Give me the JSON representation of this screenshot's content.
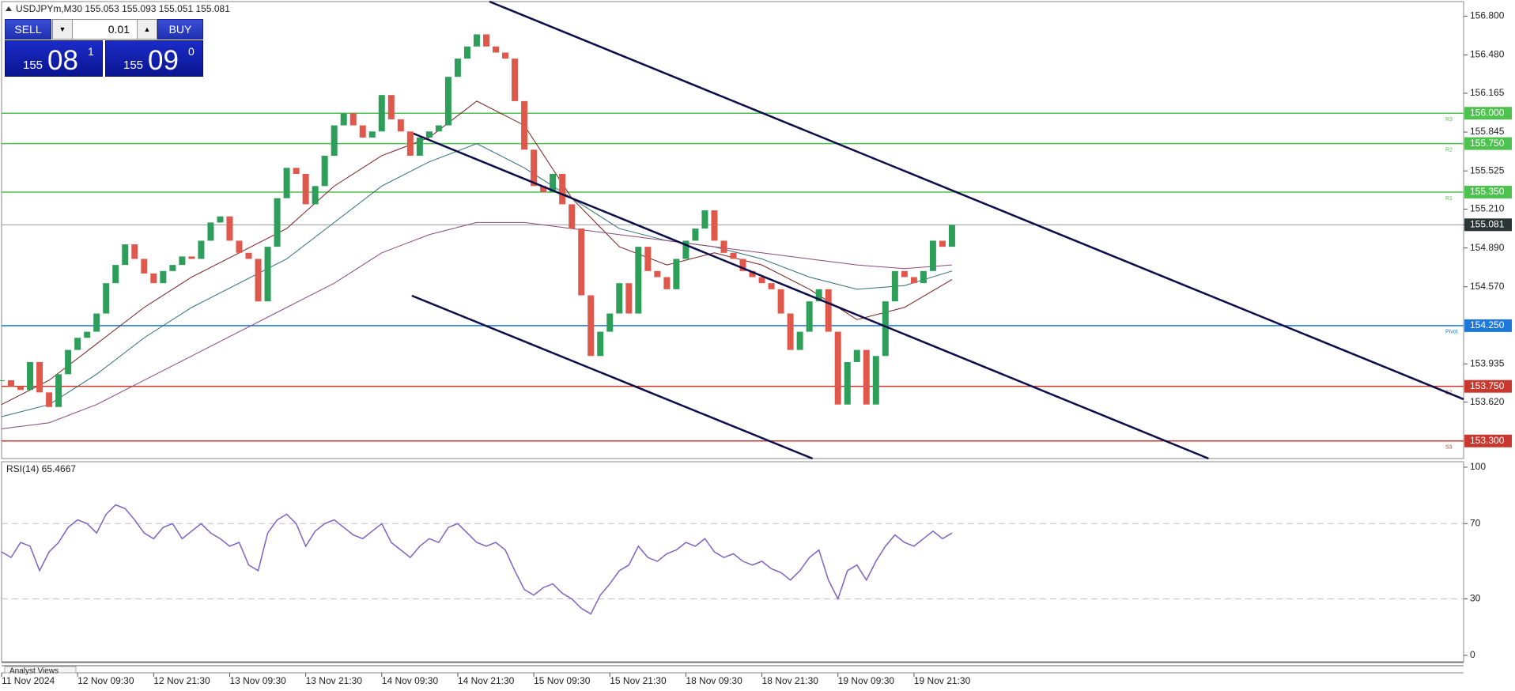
{
  "header": {
    "symbol_info": "USDJPYm,M30  155.053 155.093 155.051 155.081"
  },
  "trade_panel": {
    "sell": "SELL",
    "buy": "BUY",
    "lot": "0.01",
    "sell_price": {
      "prefix": "155",
      "big": "08",
      "sup": "1"
    },
    "buy_price": {
      "prefix": "155",
      "big": "09",
      "sup": "0"
    }
  },
  "chart_data": [
    {
      "type": "candlestick",
      "up_color": "#2e9e5b",
      "down_color": "#e0584c",
      "x": [
        0,
        3,
        6,
        9,
        12,
        15,
        18,
        21,
        24,
        27,
        30,
        33,
        36,
        39,
        42,
        45,
        48,
        51,
        54,
        57,
        60,
        63,
        66,
        69,
        72,
        75,
        78,
        81,
        84,
        87,
        90,
        93,
        96,
        99,
        102,
        105,
        108,
        111,
        114,
        117,
        120,
        123,
        126,
        129,
        132,
        135,
        138,
        141,
        144,
        147,
        150,
        153,
        156,
        159,
        162,
        165,
        168,
        171,
        174,
        177,
        180,
        183,
        186,
        189,
        192,
        195,
        198,
        201,
        204,
        207,
        210,
        213,
        216,
        219,
        222,
        225,
        228,
        231,
        234,
        237,
        240,
        243,
        246,
        249,
        252,
        255,
        258,
        261,
        264,
        267,
        270,
        273,
        276,
        279,
        282,
        285,
        288,
        291,
        294,
        297,
        300
      ],
      "values": [
        153.8,
        153.75,
        153.72,
        153.95,
        153.7,
        153.58,
        153.85,
        154.05,
        154.15,
        154.2,
        154.35,
        154.6,
        154.75,
        154.92,
        154.8,
        154.68,
        154.6,
        154.7,
        154.75,
        154.82,
        154.8,
        154.95,
        155.1,
        155.15,
        154.95,
        154.85,
        154.8,
        154.45,
        154.9,
        155.3,
        155.55,
        155.5,
        155.25,
        155.4,
        155.65,
        155.9,
        156.0,
        155.9,
        155.8,
        155.85,
        156.15,
        155.95,
        155.85,
        155.65,
        155.8,
        155.85,
        155.9,
        156.3,
        156.45,
        156.55,
        156.65,
        156.55,
        156.5,
        156.45,
        156.1,
        155.7,
        155.4,
        155.35,
        155.5,
        155.25,
        155.05,
        154.5,
        154.0,
        154.2,
        154.35,
        154.6,
        154.35,
        154.9,
        154.7,
        154.65,
        154.55,
        154.8,
        154.95,
        155.05,
        155.2,
        154.95,
        154.85,
        154.8,
        154.7,
        154.65,
        154.6,
        154.55,
        154.35,
        154.05,
        154.2,
        154.45,
        154.55,
        154.2,
        153.6,
        153.95,
        154.05,
        153.6,
        154.0,
        154.45,
        154.7,
        154.65,
        154.6,
        154.7,
        154.95,
        154.9,
        155.08
      ],
      "xlim": [
        0,
        461.5
      ],
      "ylim": [
        153.155,
        156.92
      ],
      "xticks": [
        {
          "value": 0,
          "label": "11 Nov 2024"
        },
        {
          "value": 24,
          "label": "12 Nov 09:30"
        },
        {
          "value": 48,
          "label": "12 Nov 21:30"
        },
        {
          "value": 72,
          "label": "13 Nov 09:30"
        },
        {
          "value": 96,
          "label": "13 Nov 21:30"
        },
        {
          "value": 120,
          "label": "14 Nov 09:30"
        },
        {
          "value": 144,
          "label": "14 Nov 21:30"
        },
        {
          "value": 168,
          "label": "15 Nov 09:30"
        },
        {
          "value": 192,
          "label": "15 Nov 21:30"
        },
        {
          "value": 216,
          "label": "18 Nov 09:30"
        },
        {
          "value": 240,
          "label": "18 Nov 21:30"
        },
        {
          "value": 264,
          "label": "19 Nov 09:30"
        },
        {
          "value": 288,
          "label": "19 Nov 21:30"
        }
      ],
      "yticks": [
        {
          "value": 156.8,
          "label": "156.800"
        },
        {
          "value": 156.48,
          "label": "156.480"
        },
        156.165,
        155.845,
        155.525,
        {
          "value": 155.21,
          "label": "155.210"
        },
        {
          "value": 154.89,
          "label": "154.890"
        },
        {
          "value": 154.57,
          "label": "154.570"
        },
        155.081,
        153.935,
        {
          "value": 153.62,
          "label": "153.620"
        }
      ],
      "moving_averages": [
        {
          "color": "#7a1f1f",
          "x": [
            0,
            15,
            30,
            45,
            60,
            75,
            90,
            105,
            120,
            135,
            150,
            165,
            180,
            195,
            210,
            225,
            240,
            255,
            270,
            285,
            300
          ],
          "values": [
            153.6,
            153.8,
            154.1,
            154.4,
            154.65,
            154.85,
            155.05,
            155.4,
            155.65,
            155.8,
            156.1,
            155.9,
            155.3,
            154.9,
            154.75,
            154.85,
            154.75,
            154.55,
            154.3,
            154.4,
            154.63
          ]
        },
        {
          "color": "#2f6f73",
          "x": [
            0,
            15,
            30,
            45,
            60,
            75,
            90,
            105,
            120,
            135,
            150,
            165,
            180,
            195,
            210,
            225,
            240,
            255,
            270,
            285,
            300
          ],
          "values": [
            153.5,
            153.6,
            153.85,
            154.15,
            154.4,
            154.6,
            154.8,
            155.1,
            155.4,
            155.6,
            155.75,
            155.55,
            155.3,
            155.05,
            154.95,
            154.9,
            154.8,
            154.65,
            154.55,
            154.58,
            154.7
          ]
        },
        {
          "color": "#8a4a7a",
          "x": [
            0,
            15,
            30,
            45,
            60,
            75,
            90,
            105,
            120,
            135,
            150,
            165,
            180,
            195,
            210,
            225,
            240,
            255,
            270,
            285,
            300
          ],
          "values": [
            153.4,
            153.45,
            153.6,
            153.8,
            154.0,
            154.2,
            154.4,
            154.6,
            154.85,
            155.0,
            155.1,
            155.1,
            155.05,
            155.0,
            154.95,
            154.9,
            154.85,
            154.8,
            154.75,
            154.72,
            154.75
          ]
        }
      ],
      "channel_lines": [
        {
          "color": "#0d0d4a",
          "x": [
            154,
            461.5
          ],
          "values": [
            156.92,
            153.644
          ]
        },
        {
          "color": "#0d0d4a",
          "x": [
            130,
            381
          ],
          "values": [
            155.833,
            153.155
          ]
        },
        {
          "color": "#0d0d4a",
          "x": [
            129.5,
            256
          ],
          "values": [
            154.497,
            153.155
          ]
        }
      ],
      "levels": [
        {
          "value": 156,
          "label": "156.000",
          "tag": "R3",
          "color": "#4ec24e"
        },
        {
          "value": 155.75,
          "label": "155.750",
          "tag": "R2",
          "color": "#4ec24e"
        },
        {
          "value": 155.35,
          "label": "155.350",
          "tag": "R1",
          "color": "#4ec24e"
        },
        {
          "value": 154.25,
          "label": "154.250",
          "tag": "Pivot",
          "color": "#1e78d7"
        },
        {
          "value": 153.75,
          "label": "153.750",
          "tag": "S2",
          "color": "#c8382f"
        },
        {
          "value": 153.3,
          "label": "153.300",
          "tag": "S3",
          "color": "#c8382f"
        }
      ],
      "current_price": 155.081,
      "current_color": "#9a9a9a"
    },
    {
      "type": "line",
      "title": "RSI(14) 65.4667",
      "color": "#7d63c2",
      "values": [
        55,
        52,
        60,
        58,
        45,
        55,
        60,
        68,
        72,
        70,
        65,
        75,
        80,
        78,
        72,
        65,
        62,
        68,
        70,
        62,
        66,
        70,
        65,
        62,
        58,
        60,
        48,
        45,
        65,
        72,
        75,
        70,
        58,
        66,
        70,
        72,
        68,
        64,
        62,
        66,
        70,
        60,
        56,
        52,
        58,
        62,
        60,
        68,
        70,
        65,
        60,
        58,
        60,
        56,
        45,
        35,
        32,
        36,
        38,
        33,
        30,
        25,
        22,
        32,
        38,
        45,
        48,
        58,
        52,
        50,
        54,
        56,
        60,
        58,
        62,
        55,
        52,
        54,
        50,
        48,
        50,
        46,
        44,
        40,
        45,
        52,
        56,
        40,
        30,
        45,
        48,
        40,
        50,
        58,
        64,
        60,
        58,
        62,
        66,
        62,
        65
      ],
      "ylim": [
        -3.4,
        102.9
      ],
      "yticks": [
        0,
        30,
        70,
        100
      ],
      "levels": [
        30,
        70
      ]
    }
  ],
  "analyst_views": "Analyst Views"
}
